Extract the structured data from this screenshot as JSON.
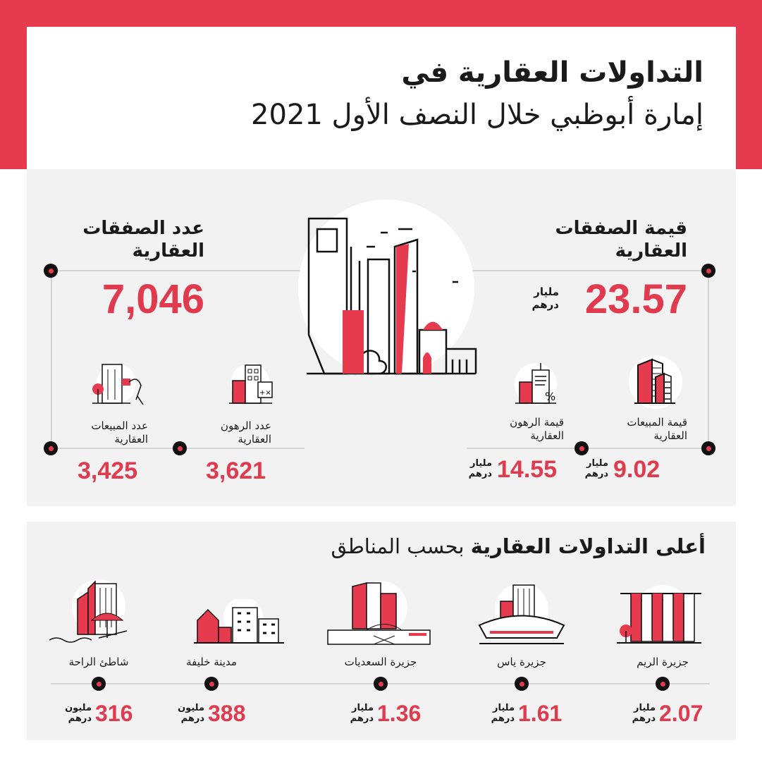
{
  "colors": {
    "accent": "#e63b4f",
    "dark": "#111111",
    "panel": "#f2f2f2"
  },
  "title": {
    "line1": "التداولات العقارية في",
    "line2": "إمارة أبوظبي خلال النصف الأول 2021"
  },
  "summary": {
    "value": {
      "heading1": "قيمة الصفقات",
      "heading2": "العقارية",
      "number": "23.57",
      "unit1": "مليار",
      "unit2": "درهم"
    },
    "count": {
      "heading1": "عدد الصفقات",
      "heading2": "العقارية",
      "number": "7,046"
    },
    "items": [
      {
        "label1": "قيمة المبيعات",
        "label2": "العقارية",
        "number": "9.02",
        "unit1": "مليار",
        "unit2": "درهم",
        "icon": "buildings-icon"
      },
      {
        "label1": "قيمة الرهون",
        "label2": "العقارية",
        "number": "14.55",
        "unit1": "مليار",
        "unit2": "درهم",
        "icon": "building-percent-icon"
      },
      {
        "label1": "عدد الرهون",
        "label2": "العقارية",
        "number": "3,621",
        "icon": "building-calculator-icon"
      },
      {
        "label1": "عدد المبيعات",
        "label2": "العقارية",
        "number": "3,425",
        "icon": "building-keys-icon"
      }
    ]
  },
  "regions": {
    "heading_bold": "أعلى التداولات العقارية",
    "heading_rest": " بحسب المناطق",
    "items": [
      {
        "name": "جزيرة الريم",
        "number": "2.07",
        "unit1": "مليار",
        "unit2": "درهم",
        "icon": "reem-island-icon"
      },
      {
        "name": "جزيرة ياس",
        "number": "1.61",
        "unit1": "مليار",
        "unit2": "درهم",
        "icon": "yas-island-icon"
      },
      {
        "name": "جزيرة السعديات",
        "number": "1.36",
        "unit1": "مليار",
        "unit2": "درهم",
        "icon": "saadiyat-island-icon"
      },
      {
        "name": "مدينة خليفة",
        "number": "388",
        "unit1": "مليون",
        "unit2": "درهم",
        "icon": "khalifa-city-icon"
      },
      {
        "name": "شاطئ الراحة",
        "number": "316",
        "unit1": "مليون",
        "unit2": "درهم",
        "icon": "al-raha-beach-icon"
      }
    ]
  }
}
